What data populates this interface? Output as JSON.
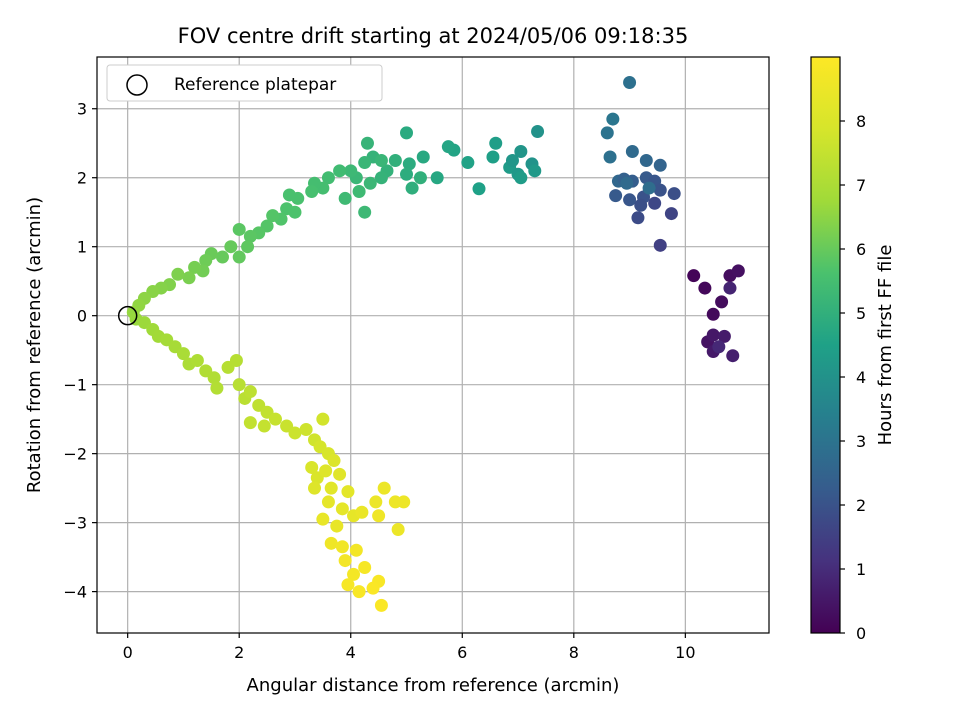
{
  "chart_data": {
    "type": "scatter",
    "title": "FOV centre drift starting at 2024/05/06 09:18:35",
    "xlabel": "Angular distance from reference (arcmin)",
    "ylabel": "Rotation from reference (arcmin)",
    "colorbar_label": "Hours from first FF file",
    "colormap": "viridis",
    "xlim": [
      -0.55,
      11.5
    ],
    "ylim": [
      -4.6,
      3.75
    ],
    "clim": [
      0,
      9.0
    ],
    "x_ticks": [
      0,
      2,
      4,
      6,
      8,
      10
    ],
    "y_ticks": [
      -4,
      -3,
      -2,
      -1,
      0,
      1,
      2,
      3
    ],
    "colorbar_ticks": [
      0,
      1,
      2,
      3,
      4,
      5,
      6,
      7,
      8
    ],
    "grid": true,
    "legend": {
      "position": "top-left",
      "entries": [
        "Reference platepar"
      ]
    },
    "reference_point": {
      "x": 0,
      "y": 0
    },
    "points": [
      [
        10.15,
        0.58,
        0.1
      ],
      [
        10.35,
        0.4,
        0.15
      ],
      [
        10.5,
        0.02,
        0.2
      ],
      [
        10.65,
        0.2,
        0.25
      ],
      [
        10.8,
        0.58,
        0.3
      ],
      [
        10.95,
        0.65,
        0.35
      ],
      [
        10.4,
        -0.38,
        0.4
      ],
      [
        10.5,
        -0.28,
        0.5
      ],
      [
        10.5,
        -0.52,
        0.55
      ],
      [
        10.7,
        -0.3,
        0.6
      ],
      [
        10.85,
        -0.58,
        0.7
      ],
      [
        10.8,
        0.4,
        0.8
      ],
      [
        10.6,
        -0.45,
        0.9
      ],
      [
        9.0,
        3.38,
        2.9
      ],
      [
        8.7,
        2.85,
        3.1
      ],
      [
        8.6,
        2.65,
        3.0
      ],
      [
        8.65,
        2.3,
        2.9
      ],
      [
        9.05,
        2.38,
        2.7
      ],
      [
        9.3,
        2.25,
        2.6
      ],
      [
        9.55,
        2.18,
        2.5
      ],
      [
        8.8,
        1.95,
        2.6
      ],
      [
        8.9,
        1.98,
        2.4
      ],
      [
        9.05,
        1.95,
        2.3
      ],
      [
        9.3,
        2.0,
        2.2
      ],
      [
        9.45,
        1.95,
        2.1
      ],
      [
        9.55,
        1.82,
        2.0
      ],
      [
        9.8,
        1.77,
        1.9
      ],
      [
        9.25,
        1.72,
        2.0
      ],
      [
        8.75,
        1.74,
        2.2
      ],
      [
        9.0,
        1.68,
        2.1
      ],
      [
        9.2,
        1.6,
        1.9
      ],
      [
        9.15,
        1.42,
        1.8
      ],
      [
        9.45,
        1.63,
        1.7
      ],
      [
        9.75,
        1.48,
        1.6
      ],
      [
        9.55,
        1.02,
        1.5
      ],
      [
        9.35,
        1.85,
        2.8
      ],
      [
        8.95,
        1.92,
        2.7
      ],
      [
        7.35,
        2.67,
        4.0
      ],
      [
        7.05,
        2.38,
        4.1
      ],
      [
        6.85,
        2.15,
        4.3
      ],
      [
        7.0,
        2.05,
        4.2
      ],
      [
        7.25,
        2.2,
        4.05
      ],
      [
        6.9,
        2.25,
        4.15
      ],
      [
        7.3,
        2.1,
        4.25
      ],
      [
        7.05,
        2.0,
        4.35
      ],
      [
        6.6,
        2.5,
        4.4
      ],
      [
        6.55,
        2.3,
        4.45
      ],
      [
        6.3,
        1.84,
        4.5
      ],
      [
        6.1,
        2.22,
        4.55
      ],
      [
        5.85,
        2.4,
        4.6
      ],
      [
        5.75,
        2.45,
        4.65
      ],
      [
        5.55,
        2.0,
        4.7
      ],
      [
        5.3,
        2.3,
        4.75
      ],
      [
        5.0,
        2.65,
        4.8
      ],
      [
        5.05,
        2.2,
        4.85
      ],
      [
        5.0,
        2.05,
        4.9
      ],
      [
        5.1,
        1.85,
        4.95
      ],
      [
        5.25,
        2.0,
        5.0
      ],
      [
        4.8,
        2.25,
        5.0
      ],
      [
        4.65,
        2.1,
        5.05
      ],
      [
        4.55,
        2.0,
        5.1
      ],
      [
        4.4,
        2.3,
        5.1
      ],
      [
        4.3,
        2.5,
        5.15
      ],
      [
        4.25,
        2.22,
        5.2
      ],
      [
        4.55,
        2.25,
        5.2
      ],
      [
        4.1,
        2.0,
        5.25
      ],
      [
        4.35,
        1.92,
        5.25
      ],
      [
        4.25,
        1.5,
        5.3
      ],
      [
        4.0,
        2.1,
        5.3
      ],
      [
        4.15,
        1.8,
        5.35
      ],
      [
        3.9,
        1.7,
        5.35
      ],
      [
        3.8,
        2.1,
        5.4
      ],
      [
        3.6,
        2.0,
        5.45
      ],
      [
        3.5,
        1.85,
        5.5
      ],
      [
        3.35,
        1.92,
        5.5
      ],
      [
        3.3,
        1.8,
        5.55
      ],
      [
        3.05,
        1.7,
        5.6
      ],
      [
        2.9,
        1.75,
        5.6
      ],
      [
        2.85,
        1.55,
        5.65
      ],
      [
        3.0,
        1.5,
        5.65
      ],
      [
        2.75,
        1.4,
        5.7
      ],
      [
        2.6,
        1.45,
        5.75
      ],
      [
        2.5,
        1.3,
        5.75
      ],
      [
        2.35,
        1.2,
        5.8
      ],
      [
        2.2,
        1.15,
        5.85
      ],
      [
        2.0,
        1.25,
        5.85
      ],
      [
        2.15,
        1.0,
        5.9
      ],
      [
        2.0,
        0.85,
        5.95
      ],
      [
        1.85,
        1.0,
        6.0
      ],
      [
        1.7,
        0.85,
        6.0
      ],
      [
        1.5,
        0.9,
        6.05
      ],
      [
        1.4,
        0.8,
        6.1
      ],
      [
        1.35,
        0.65,
        6.15
      ],
      [
        1.2,
        0.7,
        6.2
      ],
      [
        1.1,
        0.55,
        6.25
      ],
      [
        0.9,
        0.6,
        6.3
      ],
      [
        0.75,
        0.45,
        6.35
      ],
      [
        0.6,
        0.4,
        6.4
      ],
      [
        0.45,
        0.35,
        6.45
      ],
      [
        0.3,
        0.25,
        6.5
      ],
      [
        0.2,
        0.15,
        6.55
      ],
      [
        0.1,
        0.05,
        6.6
      ],
      [
        0.15,
        -0.05,
        6.65
      ],
      [
        0.3,
        -0.1,
        6.7
      ],
      [
        0.45,
        -0.2,
        6.75
      ],
      [
        0.55,
        -0.3,
        6.8
      ],
      [
        0.7,
        -0.35,
        6.85
      ],
      [
        0.85,
        -0.45,
        6.9
      ],
      [
        1.0,
        -0.55,
        6.95
      ],
      [
        1.1,
        -0.7,
        7.0
      ],
      [
        1.25,
        -0.65,
        7.05
      ],
      [
        1.4,
        -0.8,
        7.1
      ],
      [
        1.55,
        -0.9,
        7.1
      ],
      [
        1.6,
        -1.05,
        7.15
      ],
      [
        1.8,
        -0.75,
        7.2
      ],
      [
        1.95,
        -0.65,
        7.2
      ],
      [
        2.0,
        -1.0,
        7.25
      ],
      [
        2.1,
        -1.2,
        7.3
      ],
      [
        2.2,
        -1.1,
        7.35
      ],
      [
        2.35,
        -1.3,
        7.4
      ],
      [
        2.5,
        -1.4,
        7.45
      ],
      [
        2.2,
        -1.55,
        7.45
      ],
      [
        2.45,
        -1.6,
        7.5
      ],
      [
        2.65,
        -1.5,
        7.55
      ],
      [
        2.85,
        -1.6,
        7.6
      ],
      [
        3.0,
        -1.7,
        7.65
      ],
      [
        3.2,
        -1.65,
        7.7
      ],
      [
        3.35,
        -1.8,
        7.75
      ],
      [
        3.5,
        -1.5,
        7.8
      ],
      [
        3.45,
        -1.9,
        7.85
      ],
      [
        3.6,
        -2.0,
        7.9
      ],
      [
        3.3,
        -2.2,
        7.95
      ],
      [
        3.4,
        -2.35,
        8.0
      ],
      [
        3.7,
        -2.1,
        8.05
      ],
      [
        3.55,
        -2.25,
        8.1
      ],
      [
        3.8,
        -2.3,
        8.15
      ],
      [
        3.65,
        -2.5,
        8.2
      ],
      [
        3.95,
        -2.55,
        8.25
      ],
      [
        3.6,
        -2.7,
        8.3
      ],
      [
        3.85,
        -2.8,
        8.3
      ],
      [
        4.05,
        -2.9,
        8.35
      ],
      [
        3.5,
        -2.95,
        8.4
      ],
      [
        3.75,
        -3.05,
        8.4
      ],
      [
        4.2,
        -2.85,
        8.45
      ],
      [
        4.45,
        -2.7,
        8.5
      ],
      [
        4.6,
        -2.5,
        8.5
      ],
      [
        4.8,
        -2.7,
        8.55
      ],
      [
        4.95,
        -2.7,
        8.55
      ],
      [
        4.5,
        -2.9,
        8.6
      ],
      [
        3.65,
        -3.3,
        8.6
      ],
      [
        3.85,
        -3.35,
        8.65
      ],
      [
        4.1,
        -3.4,
        8.7
      ],
      [
        3.9,
        -3.55,
        8.7
      ],
      [
        4.05,
        -3.75,
        8.75
      ],
      [
        4.25,
        -3.65,
        8.8
      ],
      [
        3.95,
        -3.9,
        8.8
      ],
      [
        4.15,
        -4.0,
        8.85
      ],
      [
        4.5,
        -3.85,
        8.85
      ],
      [
        4.55,
        -4.2,
        8.9
      ],
      [
        4.4,
        -3.95,
        8.9
      ],
      [
        4.85,
        -3.1,
        8.5
      ],
      [
        3.35,
        -2.5,
        8.1
      ]
    ]
  }
}
